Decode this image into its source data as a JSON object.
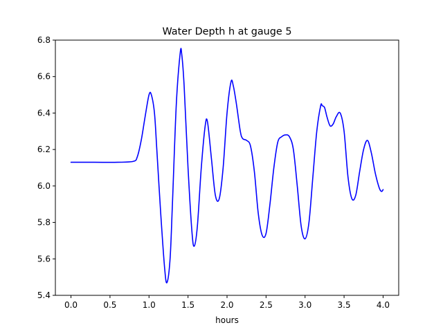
{
  "chart_data": {
    "type": "line",
    "title": "Water Depth h at gauge 5",
    "xlabel": "hours",
    "ylabel": "",
    "xlim": [
      -0.2,
      4.2
    ],
    "ylim": [
      5.4,
      6.8
    ],
    "xticks": [
      0.0,
      0.5,
      1.0,
      1.5,
      2.0,
      2.5,
      3.0,
      3.5,
      4.0
    ],
    "xtick_labels": [
      "0.0",
      "0.5",
      "1.0",
      "1.5",
      "2.0",
      "2.5",
      "3.0",
      "3.5",
      "4.0"
    ],
    "yticks": [
      5.4,
      5.6,
      5.8,
      6.0,
      6.2,
      6.4,
      6.6,
      6.8
    ],
    "ytick_labels": [
      "5.4",
      "5.6",
      "5.8",
      "6.0",
      "6.2",
      "6.4",
      "6.6",
      "6.8"
    ],
    "grid": false,
    "series": [
      {
        "color": "#0000ff",
        "x": [
          0.0,
          0.3,
          0.6,
          0.8,
          0.85,
          0.9,
          0.95,
          1.0,
          1.03,
          1.07,
          1.1,
          1.15,
          1.2,
          1.23,
          1.27,
          1.3,
          1.35,
          1.4,
          1.42,
          1.45,
          1.5,
          1.55,
          1.58,
          1.62,
          1.67,
          1.72,
          1.75,
          1.8,
          1.85,
          1.9,
          1.95,
          2.0,
          2.05,
          2.08,
          2.12,
          2.17,
          2.2,
          2.25,
          2.3,
          2.35,
          2.4,
          2.45,
          2.5,
          2.55,
          2.6,
          2.65,
          2.7,
          2.75,
          2.8,
          2.85,
          2.9,
          2.95,
          3.0,
          3.05,
          3.1,
          3.15,
          3.2,
          3.22,
          3.25,
          3.28,
          3.32,
          3.36,
          3.4,
          3.45,
          3.5,
          3.55,
          3.6,
          3.65,
          3.7,
          3.75,
          3.8,
          3.85,
          3.9,
          3.95,
          3.98,
          4.0
        ],
        "y": [
          6.13,
          6.13,
          6.13,
          6.135,
          6.16,
          6.25,
          6.38,
          6.5,
          6.5,
          6.4,
          6.2,
          5.85,
          5.55,
          5.47,
          5.6,
          5.9,
          6.45,
          6.73,
          6.72,
          6.55,
          6.1,
          5.75,
          5.67,
          5.78,
          6.1,
          6.33,
          6.35,
          6.15,
          5.95,
          5.93,
          6.1,
          6.4,
          6.57,
          6.55,
          6.45,
          6.3,
          6.26,
          6.25,
          6.22,
          6.08,
          5.85,
          5.73,
          5.74,
          5.9,
          6.1,
          6.24,
          6.27,
          6.28,
          6.27,
          6.2,
          6.0,
          5.78,
          5.71,
          5.8,
          6.05,
          6.3,
          6.44,
          6.44,
          6.43,
          6.38,
          6.33,
          6.34,
          6.38,
          6.4,
          6.3,
          6.05,
          5.93,
          5.95,
          6.08,
          6.2,
          6.25,
          6.18,
          6.07,
          5.99,
          5.97,
          5.98
        ]
      }
    ]
  }
}
